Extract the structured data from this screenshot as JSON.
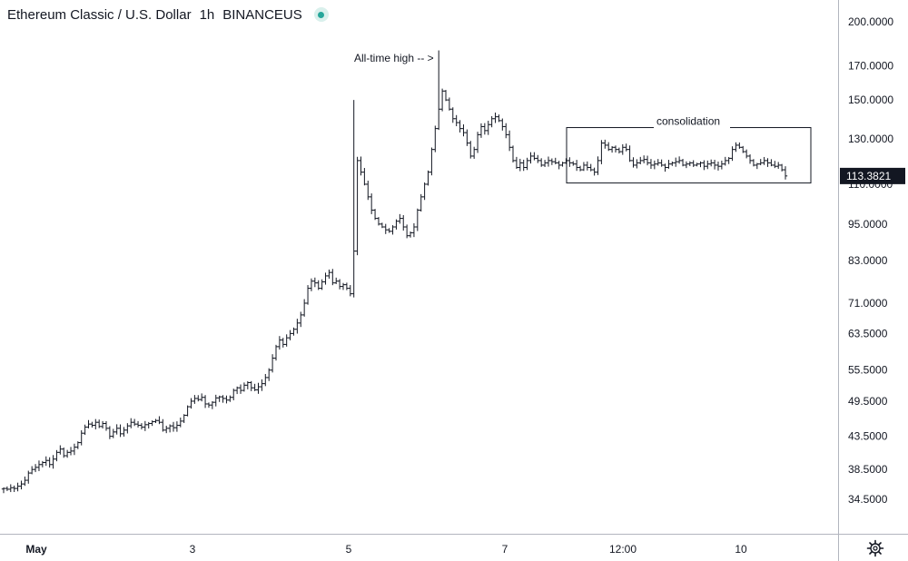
{
  "header": {
    "symbol": "Ethereum Classic / U.S. Dollar",
    "interval": "1h",
    "exchange": "BINANCEUS"
  },
  "colors": {
    "bars": "#131722",
    "status_dot": "#26a69a",
    "price_label_bg": "#131722",
    "price_label_text": "#ffffff",
    "axis_line": "#b2b5be"
  },
  "icons": {
    "status": "status-dot-icon",
    "settings": "gear-icon"
  },
  "chart_data": {
    "type": "ohlc",
    "scale": "log",
    "grid": false,
    "ylim": [
      31.5,
      215
    ],
    "price_ticks": [
      200,
      170,
      150,
      130,
      110,
      95,
      83,
      71,
      63.5,
      55.5,
      49.5,
      43.5,
      38.5,
      34.5
    ],
    "price_tick_labels": [
      "200.0000",
      "170.0000",
      "150.0000",
      "130.0000",
      "110.0000",
      "95.0000",
      "83.0000",
      "71.0000",
      "63.5000",
      "55.5000",
      "49.5000",
      "43.5000",
      "38.5000",
      "34.5000"
    ],
    "time_tick_labels": [
      "May",
      "3",
      "5",
      "7",
      "12:00",
      "10"
    ],
    "last_price": 113.3821,
    "last_price_label": "113.3821",
    "annotations": [
      {
        "text": "All-time high -- >"
      },
      {
        "text": "consolidation",
        "box_price_range": [
          110.5,
          135.5
        ]
      }
    ],
    "series": [
      {
        "values": [
          35.9,
          35.8,
          36.0,
          35.9,
          36.2,
          36.5,
          37.0,
          38.0,
          38.5,
          38.8,
          39.2,
          39.5,
          39.8,
          39.2,
          40.0,
          41.0,
          41.5,
          40.5,
          41.0,
          41.2,
          41.8,
          42.5,
          44.0,
          45.0,
          45.5,
          45.3,
          45.8,
          45.1,
          45.6,
          44.8,
          43.5,
          44.2,
          44.8,
          43.9,
          44.5,
          45.2,
          45.8,
          45.5,
          45.3,
          45.0,
          45.4,
          45.6,
          45.9,
          46.1,
          45.8,
          44.5,
          44.8,
          45.2,
          44.9,
          45.3,
          46.0,
          47.0,
          48.5,
          49.5,
          50.0,
          49.8,
          50.2,
          49.0,
          48.8,
          49.3,
          50.1,
          50.3,
          50.0,
          49.7,
          50.2,
          51.5,
          52.0,
          51.5,
          52.5,
          53.0,
          52.0,
          51.6,
          52.2,
          52.8,
          54.0,
          55.5,
          58.0,
          60.5,
          62.0,
          61.0,
          62.5,
          63.5,
          64.5,
          66.0,
          68.0,
          71.0,
          75.0,
          77.0,
          76.5,
          75.0,
          76.8,
          78.5,
          79.5,
          76.5,
          77.0,
          75.5,
          76.0,
          75.0,
          73.5,
          86.0,
          120.0,
          115.0,
          110.0,
          105.0,
          100.0,
          97.0,
          95.0,
          94.0,
          93.0,
          92.5,
          94.0,
          96.0,
          97.0,
          94.0,
          91.0,
          92.0,
          94.0,
          100.0,
          105.0,
          110.0,
          115.0,
          125.0,
          135.0,
          145.0,
          155.0,
          150.0,
          145.0,
          140.0,
          138.0,
          135.0,
          133.0,
          128.0,
          122.0,
          125.0,
          132.0,
          136.0,
          134.0,
          137.0,
          140.0,
          141.0,
          139.0,
          136.0,
          132.0,
          126.0,
          120.0,
          117.0,
          119.0,
          117.0,
          120.0,
          122.0,
          121.0,
          120.0,
          118.0,
          119.0,
          120.0,
          119.5,
          119.0,
          118.0,
          119.0,
          120.0,
          119.0,
          118.5,
          117.0,
          116.0,
          118.0,
          117.0,
          116.0,
          115.0,
          120.0,
          128.0,
          127.0,
          125.0,
          126.0,
          125.0,
          124.0,
          126.0,
          125.0,
          120.0,
          118.0,
          119.0,
          120.0,
          120.5,
          119.0,
          118.0,
          118.5,
          119.0,
          118.0,
          117.0,
          118.5,
          119.0,
          119.5,
          120.0,
          118.0,
          118.5,
          119.0,
          118.0,
          118.5,
          119.0,
          117.5,
          118.5,
          119.0,
          118.0,
          117.5,
          118.5,
          120.0,
          121.0,
          125.0,
          127.0,
          126.0,
          124.0,
          122.0,
          120.0,
          118.0,
          118.5,
          119.0,
          120.0,
          119.0,
          118.0,
          117.5,
          118.0,
          116.0,
          113.4
        ]
      }
    ]
  }
}
